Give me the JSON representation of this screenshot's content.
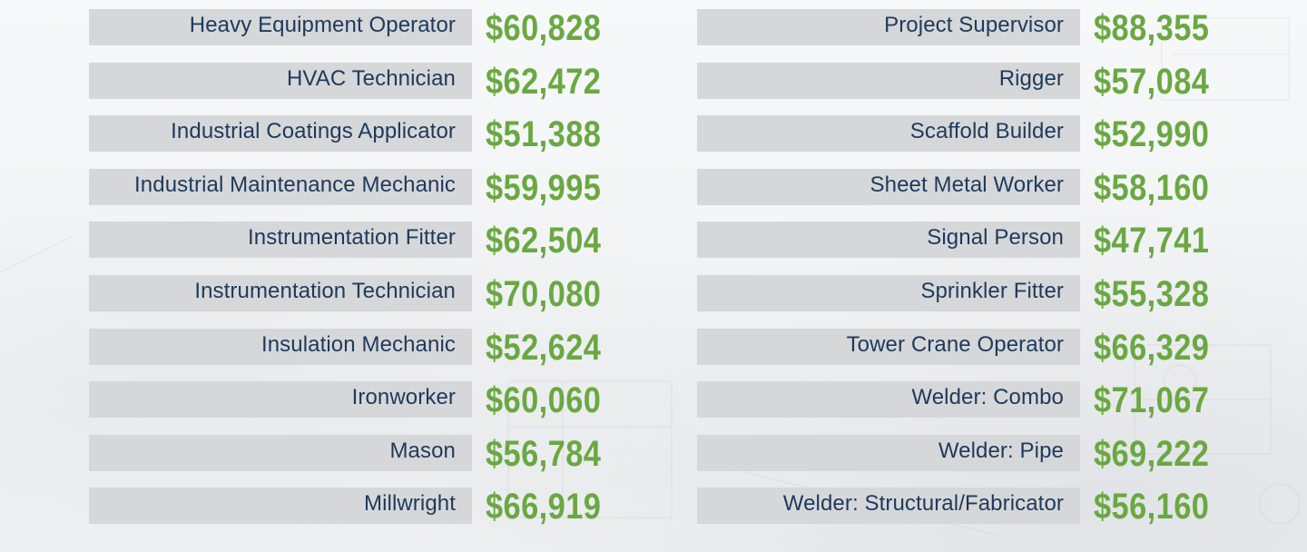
{
  "colors": {
    "bar": "#d6d7d9",
    "label_text": "#1d3a5c",
    "salary_text": "#6aa842"
  },
  "left_column": [
    {
      "occupation": "Heavy Equipment Operator",
      "salary": "$60,828"
    },
    {
      "occupation": "HVAC Technician",
      "salary": "$62,472"
    },
    {
      "occupation": "Industrial Coatings Applicator",
      "salary": "$51,388"
    },
    {
      "occupation": "Industrial Maintenance Mechanic",
      "salary": "$59,995"
    },
    {
      "occupation": "Instrumentation Fitter",
      "salary": "$62,504"
    },
    {
      "occupation": "Instrumentation Technician",
      "salary": "$70,080"
    },
    {
      "occupation": "Insulation Mechanic",
      "salary": "$52,624"
    },
    {
      "occupation": "Ironworker",
      "salary": "$60,060"
    },
    {
      "occupation": "Mason",
      "salary": "$56,784"
    },
    {
      "occupation": "Millwright",
      "salary": "$66,919"
    }
  ],
  "right_column": [
    {
      "occupation": "Project Supervisor",
      "salary": "$88,355"
    },
    {
      "occupation": "Rigger",
      "salary": "$57,084"
    },
    {
      "occupation": "Scaffold Builder",
      "salary": "$52,990"
    },
    {
      "occupation": "Sheet Metal Worker",
      "salary": "$58,160"
    },
    {
      "occupation": "Signal Person",
      "salary": "$47,741"
    },
    {
      "occupation": "Sprinkler Fitter",
      "salary": "$55,328"
    },
    {
      "occupation": "Tower Crane Operator",
      "salary": "$66,329"
    },
    {
      "occupation": "Welder: Combo",
      "salary": "$71,067"
    },
    {
      "occupation": "Welder: Pipe",
      "salary": "$69,222"
    },
    {
      "occupation": "Welder: Structural/Fabricator",
      "salary": "$56,160"
    }
  ]
}
